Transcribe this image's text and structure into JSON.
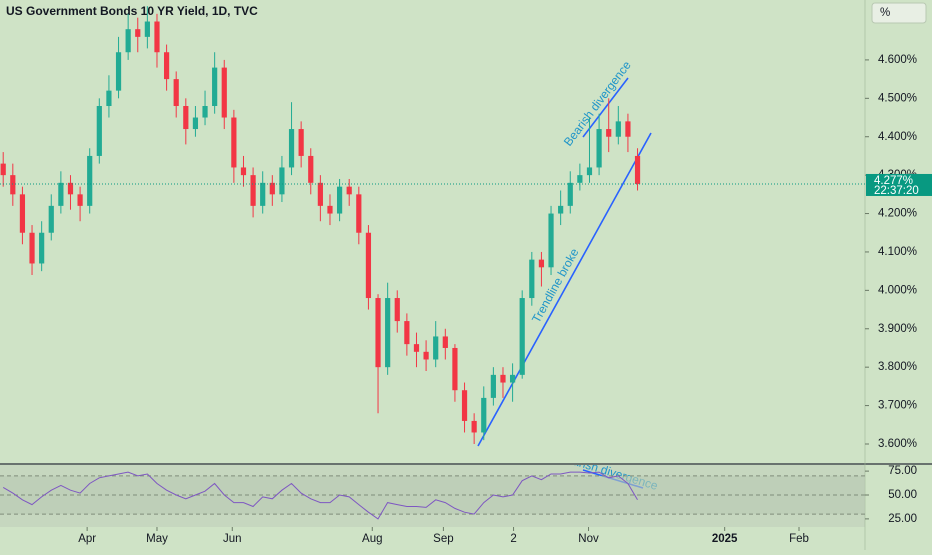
{
  "chart_data": [
    {
      "type": "candlestick",
      "title": "US Government Bonds 10 YR Yield, 1D, TVC",
      "button": "%",
      "x": [
        1,
        4,
        7,
        10,
        13,
        16,
        19,
        22,
        25,
        28,
        31,
        34,
        37,
        40,
        43,
        46,
        49,
        52,
        55,
        58,
        61,
        64,
        67,
        70,
        73,
        76,
        79,
        82,
        85,
        88,
        91,
        94,
        97,
        100,
        103,
        106,
        109,
        112,
        115,
        118,
        121,
        124,
        127,
        130,
        133,
        136,
        139,
        142,
        145,
        148,
        151,
        154,
        157,
        160,
        163,
        166,
        169,
        172,
        175,
        178,
        181,
        184,
        187,
        190,
        193,
        196,
        199
      ],
      "open": [
        4.33,
        4.3,
        4.25,
        4.15,
        4.07,
        4.15,
        4.22,
        4.28,
        4.25,
        4.22,
        4.35,
        4.48,
        4.52,
        4.62,
        4.68,
        4.66,
        4.7,
        4.62,
        4.55,
        4.48,
        4.42,
        4.45,
        4.48,
        4.58,
        4.45,
        4.32,
        4.3,
        4.22,
        4.28,
        4.25,
        4.32,
        4.42,
        4.35,
        4.28,
        4.22,
        4.2,
        4.27,
        4.25,
        4.15,
        3.98,
        3.8,
        3.98,
        3.92,
        3.86,
        3.84,
        3.82,
        3.88,
        3.85,
        3.74,
        3.66,
        3.63,
        3.72,
        3.78,
        3.76,
        3.78,
        3.98,
        4.08,
        4.06,
        4.2,
        4.22,
        4.28,
        4.3,
        4.32,
        4.42,
        4.4,
        4.44,
        4.35
      ],
      "high": [
        4.36,
        4.33,
        4.27,
        4.17,
        4.18,
        4.25,
        4.31,
        4.3,
        4.27,
        4.37,
        4.5,
        4.56,
        4.66,
        4.72,
        4.71,
        4.74,
        4.72,
        4.64,
        4.57,
        4.5,
        4.48,
        4.52,
        4.62,
        4.6,
        4.47,
        4.35,
        4.32,
        4.31,
        4.3,
        4.35,
        4.49,
        4.44,
        4.37,
        4.3,
        4.25,
        4.29,
        4.29,
        4.27,
        4.17,
        3.99,
        4.02,
        4.0,
        3.94,
        3.89,
        3.87,
        3.92,
        3.9,
        3.86,
        3.76,
        3.68,
        3.75,
        3.8,
        3.8,
        3.81,
        4.0,
        4.1,
        4.1,
        4.22,
        4.26,
        4.31,
        4.33,
        4.45,
        4.46,
        4.5,
        4.48,
        4.46,
        4.37
      ],
      "low": [
        4.27,
        4.22,
        4.12,
        4.04,
        4.05,
        4.13,
        4.2,
        4.21,
        4.18,
        4.2,
        4.33,
        4.45,
        4.5,
        4.6,
        4.62,
        4.63,
        4.58,
        4.52,
        4.45,
        4.38,
        4.4,
        4.43,
        4.46,
        4.42,
        4.28,
        4.27,
        4.19,
        4.2,
        4.22,
        4.23,
        4.3,
        4.32,
        4.25,
        4.18,
        4.17,
        4.18,
        4.22,
        4.12,
        3.95,
        3.68,
        3.78,
        3.89,
        3.83,
        3.8,
        3.79,
        3.8,
        3.82,
        3.71,
        3.63,
        3.6,
        3.61,
        3.7,
        3.72,
        3.71,
        3.77,
        3.96,
        4.01,
        4.04,
        4.17,
        4.2,
        4.26,
        4.28,
        4.3,
        4.36,
        4.38,
        4.36,
        4.26
      ],
      "close": [
        4.3,
        4.25,
        4.15,
        4.07,
        4.15,
        4.22,
        4.28,
        4.25,
        4.22,
        4.35,
        4.48,
        4.52,
        4.62,
        4.68,
        4.66,
        4.7,
        4.62,
        4.55,
        4.48,
        4.42,
        4.45,
        4.48,
        4.58,
        4.45,
        4.32,
        4.3,
        4.22,
        4.28,
        4.25,
        4.32,
        4.42,
        4.35,
        4.28,
        4.22,
        4.2,
        4.27,
        4.25,
        4.15,
        3.98,
        3.8,
        3.98,
        3.92,
        3.86,
        3.84,
        3.82,
        3.88,
        3.85,
        3.74,
        3.66,
        3.63,
        3.72,
        3.78,
        3.76,
        3.78,
        3.98,
        4.08,
        4.06,
        4.2,
        4.22,
        4.28,
        4.3,
        4.32,
        4.42,
        4.4,
        4.44,
        4.4,
        4.277
      ],
      "up_color": "#22ab94",
      "down_color": "#f23645",
      "xlim": [
        0,
        270
      ],
      "ylim": [
        3.5505,
        4.756
      ],
      "yticks": [
        {
          "value": 3.6,
          "label": "3.600%"
        },
        {
          "value": 3.7,
          "label": "3.700%"
        },
        {
          "value": 3.8,
          "label": "3.800%"
        },
        {
          "value": 3.9,
          "label": "3.900%"
        },
        {
          "value": 4.0,
          "label": "4.000%"
        },
        {
          "value": 4.1,
          "label": "4.100%"
        },
        {
          "value": 4.2,
          "label": "4.200%"
        },
        {
          "value": 4.3,
          "label": "4.300%"
        },
        {
          "value": 4.4,
          "label": "4.400%"
        },
        {
          "value": 4.5,
          "label": "4.500%"
        },
        {
          "value": 4.6,
          "label": "4.600%"
        }
      ],
      "last_price": {
        "value": 4.277,
        "label": "4.277%"
      },
      "countdown": "22:37:20",
      "annotations": [
        "Bearish divergence",
        "Trendline broke"
      ]
    },
    {
      "type": "line",
      "color": "#7e57c2",
      "x": [
        1,
        4,
        7,
        10,
        13,
        16,
        19,
        22,
        25,
        28,
        31,
        34,
        37,
        40,
        43,
        46,
        49,
        52,
        55,
        58,
        61,
        64,
        67,
        70,
        73,
        76,
        79,
        82,
        85,
        88,
        91,
        94,
        97,
        100,
        103,
        106,
        109,
        112,
        115,
        118,
        121,
        124,
        127,
        130,
        133,
        136,
        139,
        142,
        145,
        148,
        151,
        154,
        157,
        160,
        163,
        166,
        169,
        172,
        175,
        178,
        181,
        184,
        187,
        190,
        193,
        196,
        199
      ],
      "values": [
        58,
        52,
        45,
        40,
        48,
        55,
        60,
        55,
        52,
        62,
        68,
        70,
        72,
        74,
        70,
        72,
        62,
        55,
        50,
        46,
        50,
        54,
        62,
        50,
        42,
        42,
        38,
        48,
        46,
        55,
        62,
        52,
        46,
        42,
        42,
        50,
        48,
        40,
        32,
        25,
        42,
        40,
        38,
        38,
        37,
        45,
        42,
        36,
        32,
        30,
        42,
        50,
        48,
        50,
        65,
        70,
        66,
        72,
        72,
        74,
        74,
        73,
        74,
        68,
        70,
        62,
        45
      ],
      "xlim": [
        0,
        270
      ],
      "ylim": [
        16.5,
        81.4
      ],
      "yticks": [
        {
          "value": 25,
          "label": "25.00"
        },
        {
          "value": 50,
          "label": "50.00"
        },
        {
          "value": 75,
          "label": "75.00"
        }
      ],
      "band_lines": [
        30,
        50,
        70
      ],
      "annotations": [
        "Bearish divergence"
      ],
      "xticks": [
        {
          "value": 27.2,
          "label": "Apr"
        },
        {
          "value": 49,
          "label": "May"
        },
        {
          "value": 72.5,
          "label": "Jun"
        },
        {
          "value": 116.2,
          "label": "Aug"
        },
        {
          "value": 138.4,
          "label": "Sep"
        },
        {
          "value": 160.3,
          "label": "2"
        },
        {
          "value": 183.7,
          "label": "Nov"
        },
        {
          "value": 226.2,
          "label": "2025"
        },
        {
          "value": 249.4,
          "label": "Feb"
        }
      ]
    }
  ]
}
